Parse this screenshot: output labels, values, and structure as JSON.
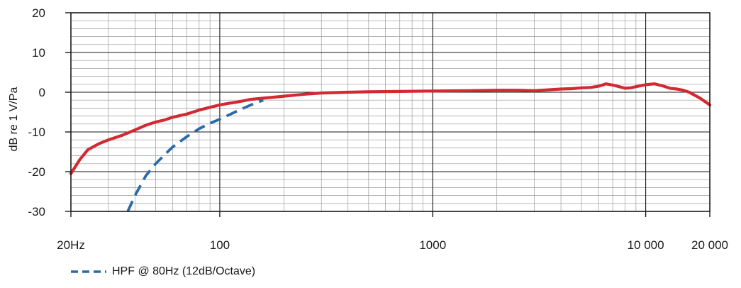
{
  "chart_data": {
    "type": "line",
    "ylabel": "dB re 1 V/Pa",
    "x_scale": "log",
    "xlim": [
      20,
      20000
    ],
    "ylim": [
      -30,
      20
    ],
    "x_ticks": [
      {
        "value": 20,
        "label": "20Hz"
      },
      {
        "value": 100,
        "label": "100"
      },
      {
        "value": 1000,
        "label": "1000"
      },
      {
        "value": 10000,
        "label": "10 000"
      },
      {
        "value": 20000,
        "label": "20 000"
      }
    ],
    "y_ticks": [
      {
        "value": 20,
        "label": "20"
      },
      {
        "value": 10,
        "label": "10"
      },
      {
        "value": 0,
        "label": "0"
      },
      {
        "value": -10,
        "label": "-10"
      },
      {
        "value": -20,
        "label": "-20"
      },
      {
        "value": -30,
        "label": "-30"
      }
    ],
    "grid": true,
    "legend_position": "bottom-left",
    "series": [
      {
        "style": "solid",
        "color": "#d12a32",
        "x": [
          20,
          22,
          24,
          27,
          30,
          35,
          40,
          45,
          50,
          55,
          60,
          70,
          80,
          90,
          100,
          110,
          120,
          140,
          160,
          200,
          250,
          300,
          400,
          500,
          700,
          1000,
          1500,
          2000,
          2500,
          3000,
          3500,
          4000,
          4500,
          5000,
          5500,
          6000,
          6500,
          7000,
          7500,
          8000,
          8500,
          9000,
          10000,
          11000,
          12000,
          13000,
          14000,
          15000,
          16000,
          18000,
          20000
        ],
        "y": [
          -20.5,
          -17,
          -14.5,
          -13,
          -12,
          -10.8,
          -9.5,
          -8.3,
          -7.5,
          -7,
          -6.3,
          -5.5,
          -4.5,
          -3.8,
          -3.2,
          -2.8,
          -2.5,
          -1.8,
          -1.5,
          -1,
          -0.5,
          -0.2,
          0,
          0.1,
          0.2,
          0.3,
          0.4,
          0.5,
          0.5,
          0.4,
          0.6,
          0.8,
          0.9,
          1.1,
          1.2,
          1.5,
          2.1,
          1.8,
          1.4,
          1.0,
          1.1,
          1.4,
          1.9,
          2.1,
          1.6,
          1.0,
          0.8,
          0.5,
          0,
          -1.5,
          -3.2
        ]
      },
      {
        "name": "HPF @ 80Hz (12dB/Octave)",
        "style": "dashed",
        "color": "#2c6aa6",
        "x": [
          37,
          40,
          45,
          50,
          55,
          60,
          70,
          80,
          90,
          100,
          120,
          140,
          160
        ],
        "y": [
          -30,
          -26,
          -21,
          -18,
          -15.8,
          -13.8,
          -11.2,
          -9.2,
          -7.8,
          -6.8,
          -4.8,
          -3.2,
          -2
        ]
      }
    ]
  }
}
